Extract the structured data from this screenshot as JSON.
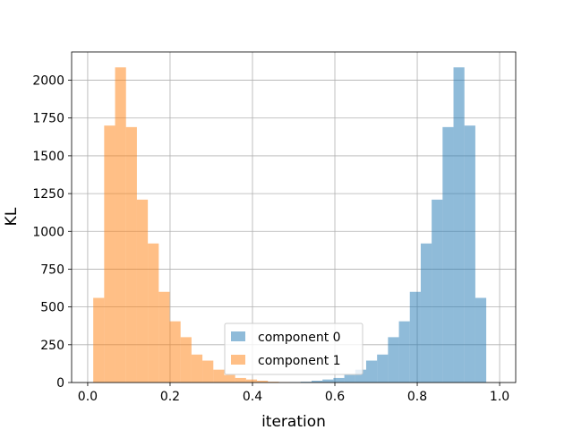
{
  "chart_data": {
    "type": "bar",
    "title": "",
    "xlabel": "iteration",
    "ylabel": "KL",
    "xlim": [
      -0.039,
      1.039
    ],
    "ylim": [
      0,
      2187
    ],
    "xticks": [
      0.0,
      0.2,
      0.4,
      0.6,
      0.8,
      1.0
    ],
    "xtick_labels": [
      "0.0",
      "0.2",
      "0.4",
      "0.6",
      "0.8",
      "1.0"
    ],
    "yticks": [
      0,
      250,
      500,
      750,
      1000,
      1250,
      1500,
      1750,
      2000
    ],
    "ytick_labels": [
      "0",
      "250",
      "500",
      "750",
      "1000",
      "1250",
      "1500",
      "1750",
      "2000"
    ],
    "grid": true,
    "legend": "lower-center",
    "bin_edges": [
      0.0135,
      0.04,
      0.0665,
      0.093,
      0.1195,
      0.146,
      0.1725,
      0.199,
      0.2255,
      0.252,
      0.2785,
      0.305,
      0.3315,
      0.358,
      0.3845,
      0.411,
      0.4375,
      0.464,
      0.4905,
      0.517,
      0.5435,
      0.57,
      0.5965,
      0.623,
      0.6495,
      0.676,
      0.7025,
      0.729,
      0.7555,
      0.782,
      0.8085,
      0.835,
      0.8615,
      0.888,
      0.9145,
      0.941,
      0.9675,
      0.994
    ],
    "series": [
      {
        "name": "component 0",
        "color": "#1f77b4",
        "alpha": 0.5,
        "values": [
          0,
          0,
          0,
          0,
          0,
          0,
          0,
          0,
          0,
          0,
          0,
          0,
          0,
          0,
          0,
          0,
          0,
          0,
          2,
          5,
          12,
          20,
          30,
          50,
          85,
          145,
          185,
          300,
          405,
          600,
          920,
          1210,
          1690,
          2085,
          1700,
          560,
          0
        ]
      },
      {
        "name": "component 1",
        "color": "#ff7f0e",
        "alpha": 0.5,
        "values": [
          560,
          1700,
          2085,
          1690,
          1210,
          920,
          600,
          405,
          300,
          185,
          145,
          85,
          50,
          30,
          20,
          12,
          5,
          2,
          0,
          0,
          0,
          0,
          0,
          0,
          0,
          0,
          0,
          0,
          0,
          0,
          0,
          0,
          0,
          0,
          0,
          0,
          0
        ]
      }
    ]
  }
}
